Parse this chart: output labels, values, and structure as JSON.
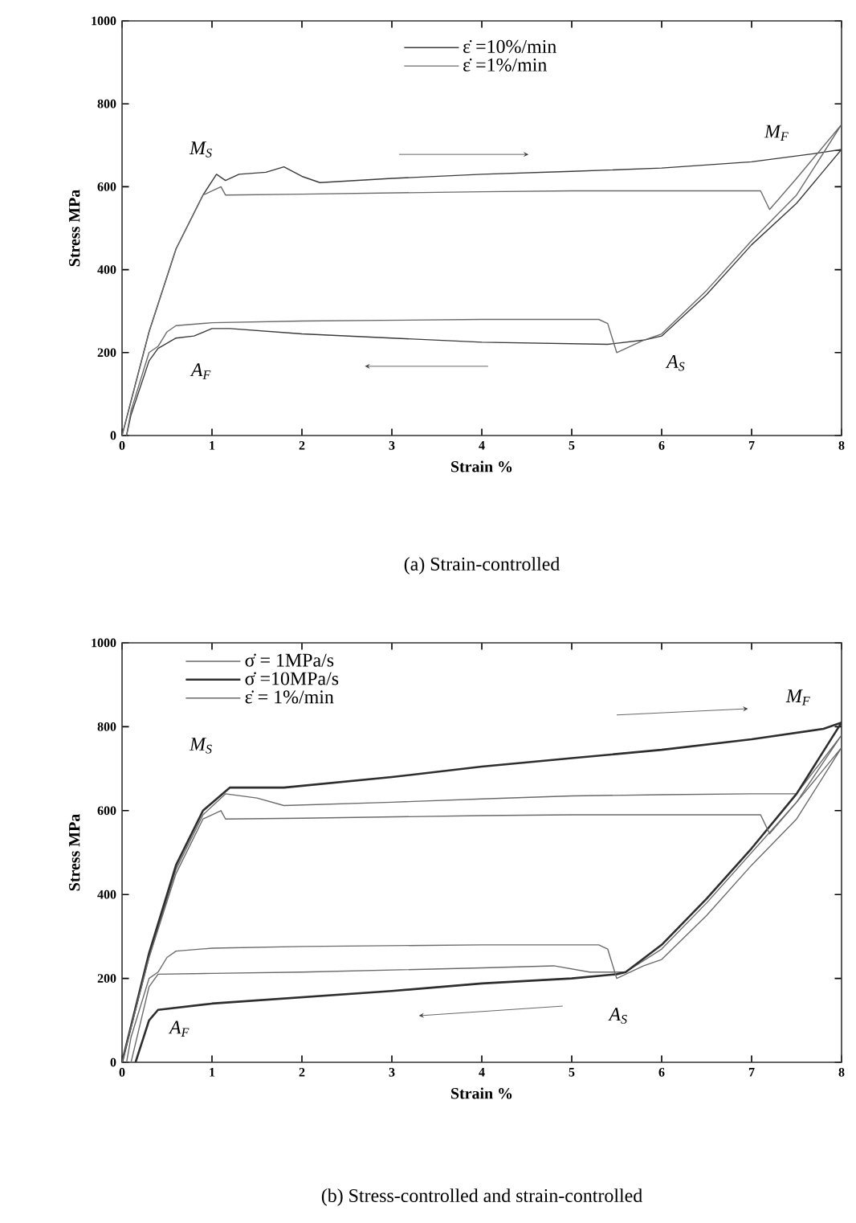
{
  "chart_data": [
    {
      "type": "line",
      "xlabel": "Strain %",
      "ylabel": "Stress MPa",
      "xlim": [
        0,
        8
      ],
      "ylim": [
        0,
        1000
      ],
      "xticks": [
        0,
        1,
        2,
        3,
        4,
        5,
        6,
        7,
        8
      ],
      "yticks": [
        0,
        200,
        400,
        600,
        800,
        1000
      ],
      "legend": "top",
      "marker": "none",
      "line_style": "solid",
      "series": [
        {
          "name": "ε̇ =10%/min",
          "color": "#3a3a3a",
          "x": [
            0,
            0.3,
            0.6,
            0.9,
            1.05,
            1.15,
            1.3,
            1.6,
            1.8,
            2.0,
            2.2,
            3,
            4,
            5,
            6,
            7,
            7.7,
            8,
            7.5,
            7,
            6.5,
            6,
            5.8,
            5.4,
            4,
            3,
            2,
            1.2,
            1,
            0.8,
            0.6,
            0.4,
            0.3,
            0.1,
            0.05
          ],
          "values": [
            0,
            250,
            450,
            580,
            630,
            615,
            630,
            635,
            648,
            625,
            610,
            620,
            630,
            637,
            645,
            660,
            680,
            690,
            560,
            460,
            340,
            240,
            230,
            220,
            225,
            235,
            245,
            258,
            258,
            240,
            235,
            210,
            180,
            50,
            0
          ]
        },
        {
          "name": "ε̇ =1%/min",
          "color": "#6a6a6a",
          "x": [
            0,
            0.3,
            0.6,
            0.9,
            1.1,
            1.15,
            2,
            4,
            5,
            7.1,
            7.2,
            7.5,
            8,
            7.5,
            7,
            6.5,
            6,
            5.8,
            5.5,
            5.4,
            5.3,
            4,
            2,
            1,
            0.6,
            0.5,
            0.4,
            0.3,
            0.1,
            0.05
          ],
          "values": [
            0,
            250,
            450,
            580,
            600,
            580,
            582,
            588,
            590,
            590,
            545,
            620,
            750,
            580,
            470,
            350,
            245,
            230,
            200,
            270,
            280,
            280,
            276,
            272,
            265,
            250,
            215,
            200,
            60,
            0
          ]
        }
      ],
      "annotations": [
        "M$_{S}$",
        "M$_{F}$",
        "A$_{S}$",
        "A$_{F}$",
        "(a) Strain-controlled"
      ]
    },
    {
      "type": "line",
      "xlabel": "Strain %",
      "ylabel": "Stress MPa",
      "xlim": [
        0,
        8
      ],
      "ylim": [
        0,
        1000
      ],
      "xticks": [
        0,
        1,
        2,
        3,
        4,
        5,
        6,
        7,
        8
      ],
      "yticks": [
        0,
        200,
        400,
        600,
        800,
        1000
      ],
      "legend": "top left",
      "marker": "none",
      "line_style": "solid",
      "series": [
        {
          "name": "σ̇ = 1MPa/s",
          "color": "#6a6a6a",
          "x": [
            0,
            0.3,
            0.6,
            0.9,
            1.15,
            1.5,
            1.8,
            3,
            4,
            5,
            6,
            7,
            7.5,
            8,
            7.5,
            6.5,
            6,
            5.6,
            5.2,
            4.8,
            4,
            2,
            1,
            0.4,
            0.3,
            0.1
          ],
          "values": [
            0,
            250,
            460,
            590,
            640,
            630,
            612,
            620,
            628,
            635,
            638,
            640,
            640,
            780,
            620,
            380,
            270,
            215,
            215,
            230,
            225,
            215,
            212,
            210,
            180,
            0
          ]
        },
        {
          "name": "σ̇ =10MPa/s",
          "color": "#2e2e2e",
          "x": [
            0,
            0.3,
            0.6,
            0.9,
            1.2,
            1.8,
            3,
            4,
            5,
            6,
            7,
            7.8,
            8,
            7.5,
            7,
            6.5,
            6,
            5.6,
            5.5,
            5,
            4,
            3,
            2,
            1,
            0.4,
            0.3,
            0.15
          ],
          "values": [
            0,
            260,
            470,
            600,
            655,
            655,
            680,
            705,
            725,
            745,
            770,
            795,
            810,
            640,
            510,
            390,
            280,
            215,
            210,
            200,
            188,
            170,
            155,
            140,
            125,
            100,
            0
          ]
        },
        {
          "name": "ε̇ = 1%/min",
          "color": "#6a6a6a",
          "x": [
            0,
            0.3,
            0.6,
            0.9,
            1.1,
            1.15,
            2,
            4,
            5,
            7.1,
            7.2,
            7.5,
            8,
            7.5,
            7,
            6.5,
            6,
            5.8,
            5.5,
            5.4,
            5.3,
            4,
            2,
            1,
            0.6,
            0.5,
            0.4,
            0.3,
            0.1,
            0.05
          ],
          "values": [
            0,
            250,
            450,
            580,
            600,
            580,
            582,
            588,
            590,
            590,
            545,
            620,
            750,
            580,
            470,
            350,
            245,
            230,
            200,
            270,
            280,
            280,
            276,
            272,
            265,
            250,
            215,
            200,
            60,
            0
          ]
        }
      ],
      "annotations": [
        "M$_{S}$",
        "M$_{F}$",
        "A$_{S}$",
        "A$_{F}$",
        "(b) Stress-controlled and strain-controlled"
      ]
    }
  ]
}
